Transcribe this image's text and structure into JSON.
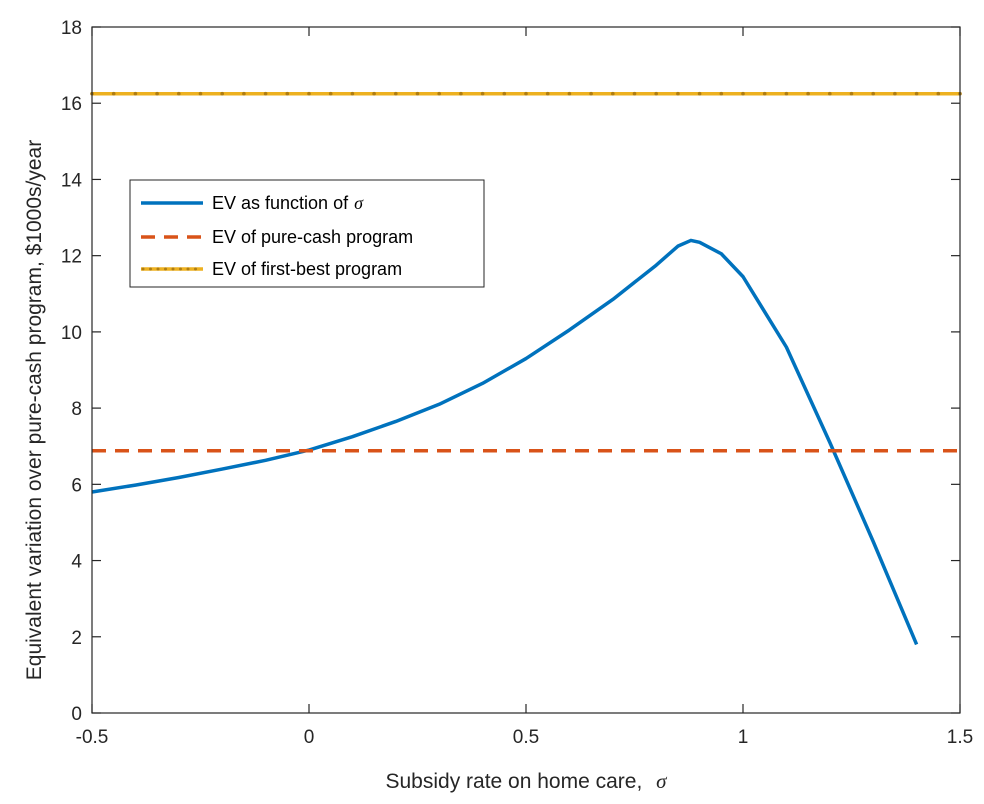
{
  "chart_data": {
    "type": "line",
    "xlabel": "Subsidy rate on home care,",
    "xlabel_symbol": "σ",
    "ylabel": "Equivalent variation over pure-cash program, $1000s/year",
    "xlim": [
      -0.5,
      1.5
    ],
    "ylim": [
      0,
      18
    ],
    "xticks": [
      -0.5,
      0,
      0.5,
      1,
      1.5
    ],
    "xtick_labels": [
      "-0.5",
      "0",
      "0.5",
      "1",
      "1.5"
    ],
    "yticks": [
      0,
      2,
      4,
      6,
      8,
      10,
      12,
      14,
      16,
      18
    ],
    "ytick_labels": [
      "0",
      "2",
      "4",
      "6",
      "8",
      "10",
      "12",
      "14",
      "16",
      "18"
    ],
    "grid": false,
    "legend_position": "upper-left",
    "series": [
      {
        "name": "EV as function of",
        "name_symbol": "σ",
        "style": "solid",
        "color": "#0072BD",
        "x": [
          -0.5,
          -0.4,
          -0.3,
          -0.2,
          -0.1,
          0.0,
          0.1,
          0.2,
          0.3,
          0.4,
          0.5,
          0.6,
          0.7,
          0.8,
          0.85,
          0.88,
          0.9,
          0.95,
          1.0,
          1.1,
          1.2,
          1.3,
          1.4
        ],
        "y": [
          5.8,
          5.98,
          6.18,
          6.4,
          6.63,
          6.9,
          7.25,
          7.65,
          8.1,
          8.65,
          9.3,
          10.05,
          10.85,
          11.75,
          12.25,
          12.4,
          12.35,
          12.05,
          11.45,
          9.6,
          7.1,
          4.5,
          1.8
        ]
      },
      {
        "name": "EV of pure-cash program",
        "style": "dashed",
        "color": "#D95319",
        "x": [
          -0.5,
          1.5
        ],
        "y": [
          6.88,
          6.88
        ]
      },
      {
        "name": "EV of first-best program",
        "style": "solid-dotted",
        "color": "#EDB120",
        "x": [
          -0.5,
          1.5
        ],
        "y": [
          16.25,
          16.25
        ]
      }
    ]
  }
}
